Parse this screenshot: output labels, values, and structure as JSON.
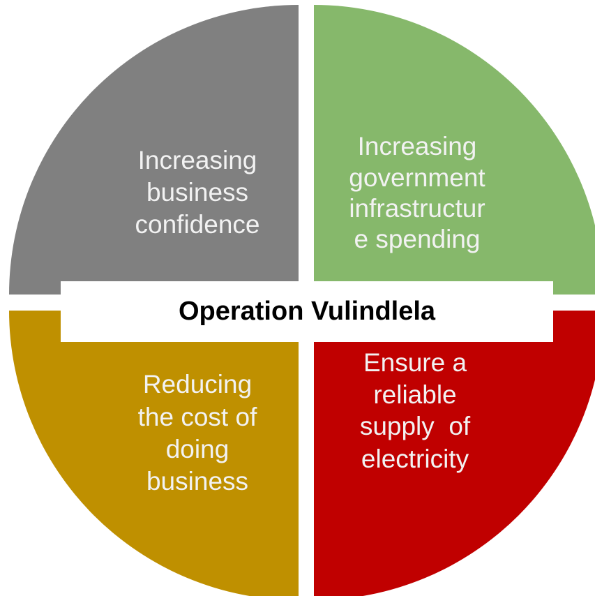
{
  "title": "Operation Vulindlela",
  "quadrants": [
    {
      "lines": [
        "Increasing",
        "business",
        "confidence"
      ]
    },
    {
      "lines": [
        "Increasing",
        "government",
        "infrastructur",
        "e spending"
      ]
    },
    {
      "lines": [
        "Reducing",
        "the cost of",
        "doing",
        "business"
      ]
    },
    {
      "lines": [
        "Ensure a",
        "reliable",
        "supply  of",
        "electricity"
      ]
    }
  ]
}
